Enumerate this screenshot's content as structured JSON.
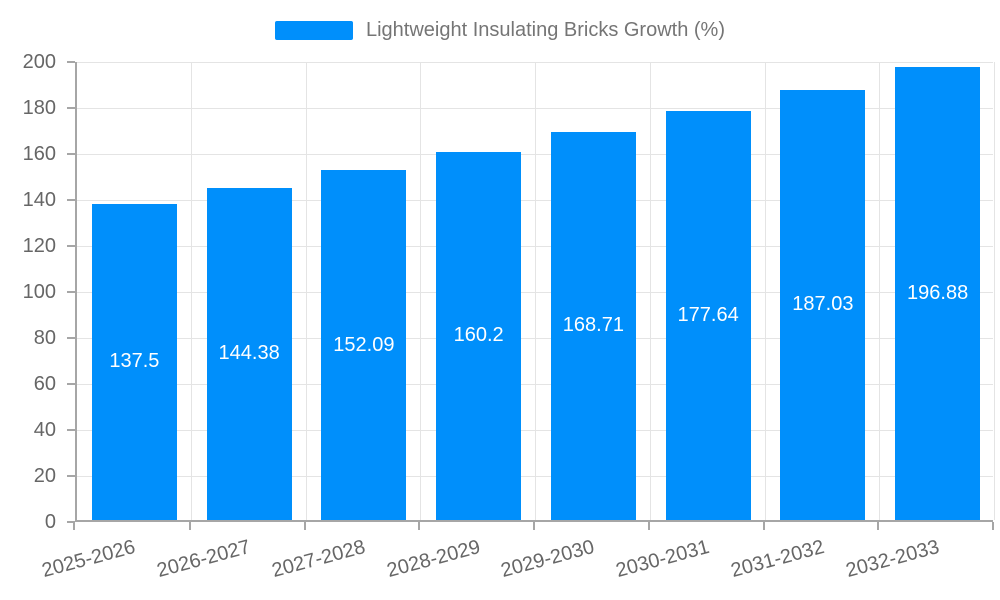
{
  "legend": {
    "label": "Lightweight Insulating Bricks Growth (%)"
  },
  "chart_data": {
    "type": "bar",
    "title": "",
    "xlabel": "",
    "ylabel": "",
    "series_name": "Lightweight Insulating Bricks Growth (%)",
    "categories": [
      "2025-2026",
      "2026-2027",
      "2027-2028",
      "2028-2029",
      "2029-2030",
      "2030-2031",
      "2031-2032",
      "2032-2033"
    ],
    "values": [
      137.5,
      144.38,
      152.09,
      160.2,
      168.71,
      177.64,
      187.03,
      196.88
    ],
    "value_labels": [
      "137.5",
      "144.38",
      "152.09",
      "160.2",
      "168.71",
      "177.64",
      "187.03",
      "196.88"
    ],
    "ylim": [
      0,
      200
    ],
    "yticks": [
      0,
      20,
      40,
      60,
      80,
      100,
      120,
      140,
      160,
      180,
      200
    ],
    "grid": true,
    "legend_position": "top",
    "colors": {
      "bar": "#008FFB",
      "bar_label": "#ffffff",
      "axis_line": "#a6a6a6",
      "gridline": "#e4e4e4",
      "tick_label": "#666666",
      "legend_text": "#757575",
      "background": "#ffffff"
    }
  }
}
